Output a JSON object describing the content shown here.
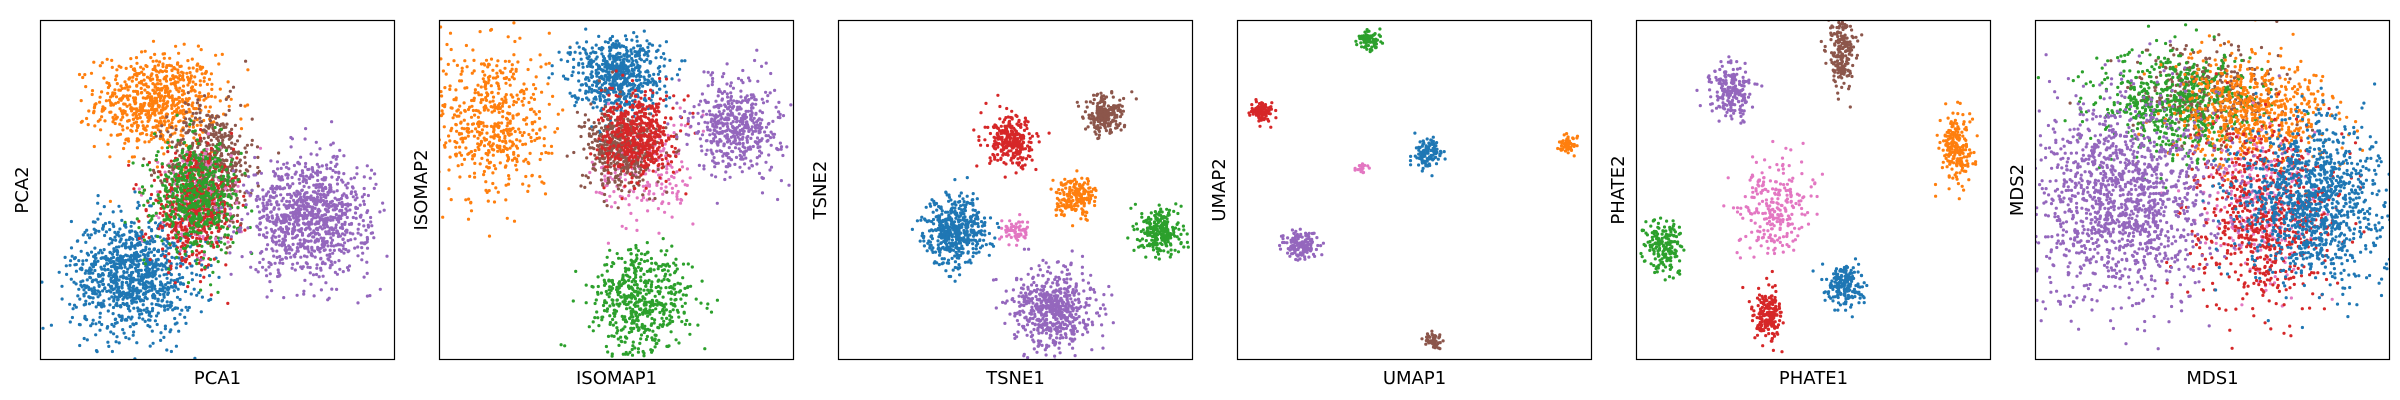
{
  "chart_data": [
    {
      "type": "scatter",
      "xlabel": "PCA1",
      "ylabel": "PCA2",
      "xlim": [
        0,
        1
      ],
      "ylim": [
        0,
        1
      ],
      "ticks": "none",
      "grid": false,
      "legend": "none",
      "series": [
        {
          "color": "#ff7f0e",
          "center": [
            0.33,
            0.76
          ],
          "spread": [
            0.085,
            0.07
          ],
          "count": 700
        },
        {
          "color": "#8c564b",
          "center": [
            0.48,
            0.57
          ],
          "spread": [
            0.06,
            0.09
          ],
          "count": 600
        },
        {
          "color": "#1f77b4",
          "center": [
            0.26,
            0.25
          ],
          "spread": [
            0.085,
            0.085
          ],
          "count": 1000
        },
        {
          "color": "#e377c2",
          "center": [
            0.44,
            0.47
          ],
          "spread": [
            0.05,
            0.07
          ],
          "count": 250
        },
        {
          "color": "#d62728",
          "center": [
            0.43,
            0.44
          ],
          "spread": [
            0.06,
            0.08
          ],
          "count": 500
        },
        {
          "color": "#2ca02c",
          "center": [
            0.44,
            0.48
          ],
          "spread": [
            0.06,
            0.08
          ],
          "count": 550
        },
        {
          "color": "#9467bd",
          "center": [
            0.76,
            0.42
          ],
          "spread": [
            0.085,
            0.085
          ],
          "count": 1000
        }
      ]
    },
    {
      "type": "scatter",
      "xlabel": "ISOMAP1",
      "ylabel": "ISOMAP2",
      "xlim": [
        0,
        1
      ],
      "ylim": [
        0,
        1
      ],
      "ticks": "none",
      "grid": false,
      "legend": "none",
      "series": [
        {
          "color": "#ff7f0e",
          "center": [
            0.15,
            0.7
          ],
          "spread": [
            0.08,
            0.12
          ],
          "count": 550
        },
        {
          "color": "#1f77b4",
          "center": [
            0.5,
            0.84
          ],
          "spread": [
            0.065,
            0.055
          ],
          "count": 650
        },
        {
          "color": "#e377c2",
          "center": [
            0.58,
            0.55
          ],
          "spread": [
            0.07,
            0.08
          ],
          "count": 200
        },
        {
          "color": "#8c564b",
          "center": [
            0.51,
            0.62
          ],
          "spread": [
            0.05,
            0.06
          ],
          "count": 450
        },
        {
          "color": "#d62728",
          "center": [
            0.56,
            0.66
          ],
          "spread": [
            0.05,
            0.06
          ],
          "count": 500
        },
        {
          "color": "#9467bd",
          "center": [
            0.84,
            0.69
          ],
          "spread": [
            0.06,
            0.07
          ],
          "count": 500
        },
        {
          "color": "#2ca02c",
          "center": [
            0.57,
            0.17
          ],
          "spread": [
            0.07,
            0.08
          ],
          "count": 550
        }
      ]
    },
    {
      "type": "scatter",
      "xlabel": "TSNE1",
      "ylabel": "TSNE2",
      "xlim": [
        0,
        1
      ],
      "ylim": [
        0,
        1
      ],
      "ticks": "none",
      "grid": false,
      "legend": "none",
      "series": [
        {
          "color": "#8c564b",
          "center": [
            0.75,
            0.72
          ],
          "spread": [
            0.028,
            0.028
          ],
          "count": 200
        },
        {
          "color": "#d62728",
          "center": [
            0.49,
            0.64
          ],
          "spread": [
            0.034,
            0.036
          ],
          "count": 280
        },
        {
          "color": "#ff7f0e",
          "center": [
            0.67,
            0.48
          ],
          "spread": [
            0.028,
            0.028
          ],
          "count": 200
        },
        {
          "color": "#1f77b4",
          "center": [
            0.33,
            0.38
          ],
          "spread": [
            0.043,
            0.048
          ],
          "count": 500
        },
        {
          "color": "#e377c2",
          "center": [
            0.5,
            0.38
          ],
          "spread": [
            0.018,
            0.018
          ],
          "count": 60
        },
        {
          "color": "#2ca02c",
          "center": [
            0.91,
            0.38
          ],
          "spread": [
            0.03,
            0.033
          ],
          "count": 250
        },
        {
          "color": "#9467bd",
          "center": [
            0.61,
            0.15
          ],
          "spread": [
            0.055,
            0.06
          ],
          "count": 600
        }
      ]
    },
    {
      "type": "scatter",
      "xlabel": "UMAP1",
      "ylabel": "UMAP2",
      "xlim": [
        0,
        1
      ],
      "ylim": [
        0,
        1
      ],
      "ticks": "none",
      "grid": false,
      "legend": "none",
      "series": [
        {
          "color": "#2ca02c",
          "center": [
            0.37,
            0.94
          ],
          "spread": [
            0.015,
            0.015
          ],
          "count": 80
        },
        {
          "color": "#d62728",
          "center": [
            0.07,
            0.73
          ],
          "spread": [
            0.016,
            0.015
          ],
          "count": 100
        },
        {
          "color": "#1f77b4",
          "center": [
            0.54,
            0.61
          ],
          "spread": [
            0.02,
            0.02
          ],
          "count": 120
        },
        {
          "color": "#ff7f0e",
          "center": [
            0.93,
            0.63
          ],
          "spread": [
            0.012,
            0.012
          ],
          "count": 60
        },
        {
          "color": "#e377c2",
          "center": [
            0.35,
            0.56
          ],
          "spread": [
            0.008,
            0.007
          ],
          "count": 20
        },
        {
          "color": "#9467bd",
          "center": [
            0.18,
            0.34
          ],
          "spread": [
            0.025,
            0.022
          ],
          "count": 150
        },
        {
          "color": "#8c564b",
          "center": [
            0.55,
            0.06
          ],
          "spread": [
            0.012,
            0.012
          ],
          "count": 50
        }
      ]
    },
    {
      "type": "scatter",
      "xlabel": "PHATE1",
      "ylabel": "PHATE2",
      "xlim": [
        0,
        1
      ],
      "ylim": [
        0,
        1
      ],
      "ticks": "none",
      "grid": false,
      "legend": "none",
      "series": [
        {
          "color": "#8c564b",
          "center": [
            0.58,
            0.9
          ],
          "spread": [
            0.02,
            0.05
          ],
          "count": 200
        },
        {
          "color": "#9467bd",
          "center": [
            0.27,
            0.79
          ],
          "spread": [
            0.028,
            0.04
          ],
          "count": 200
        },
        {
          "color": "#ff7f0e",
          "center": [
            0.9,
            0.62
          ],
          "spread": [
            0.022,
            0.05
          ],
          "count": 200
        },
        {
          "color": "#e377c2",
          "center": [
            0.39,
            0.45
          ],
          "spread": [
            0.05,
            0.07
          ],
          "count": 250
        },
        {
          "color": "#2ca02c",
          "center": [
            0.08,
            0.34
          ],
          "spread": [
            0.025,
            0.04
          ],
          "count": 180
        },
        {
          "color": "#1f77b4",
          "center": [
            0.59,
            0.22
          ],
          "spread": [
            0.025,
            0.03
          ],
          "count": 200
        },
        {
          "color": "#d62728",
          "center": [
            0.37,
            0.13
          ],
          "spread": [
            0.02,
            0.04
          ],
          "count": 200
        }
      ]
    },
    {
      "type": "scatter",
      "xlabel": "MDS1",
      "ylabel": "MDS2",
      "xlim": [
        0,
        1
      ],
      "ylim": [
        0,
        1
      ],
      "ticks": "none",
      "grid": false,
      "legend": "none",
      "series": [
        {
          "color": "#8c564b",
          "center": [
            0.47,
            0.78
          ],
          "spread": [
            0.1,
            0.07
          ],
          "count": 350
        },
        {
          "color": "#2ca02c",
          "center": [
            0.4,
            0.75
          ],
          "spread": [
            0.11,
            0.08
          ],
          "count": 650
        },
        {
          "color": "#ff7f0e",
          "center": [
            0.62,
            0.73
          ],
          "spread": [
            0.11,
            0.08
          ],
          "count": 650
        },
        {
          "color": "#e377c2",
          "center": [
            0.64,
            0.45
          ],
          "spread": [
            0.08,
            0.1
          ],
          "count": 250
        },
        {
          "color": "#d62728",
          "center": [
            0.64,
            0.42
          ],
          "spread": [
            0.1,
            0.13
          ],
          "count": 700
        },
        {
          "color": "#9467bd",
          "center": [
            0.25,
            0.48
          ],
          "spread": [
            0.13,
            0.15
          ],
          "count": 1400
        },
        {
          "color": "#1f77b4",
          "center": [
            0.78,
            0.47
          ],
          "spread": [
            0.1,
            0.12
          ],
          "count": 1100
        }
      ]
    }
  ]
}
